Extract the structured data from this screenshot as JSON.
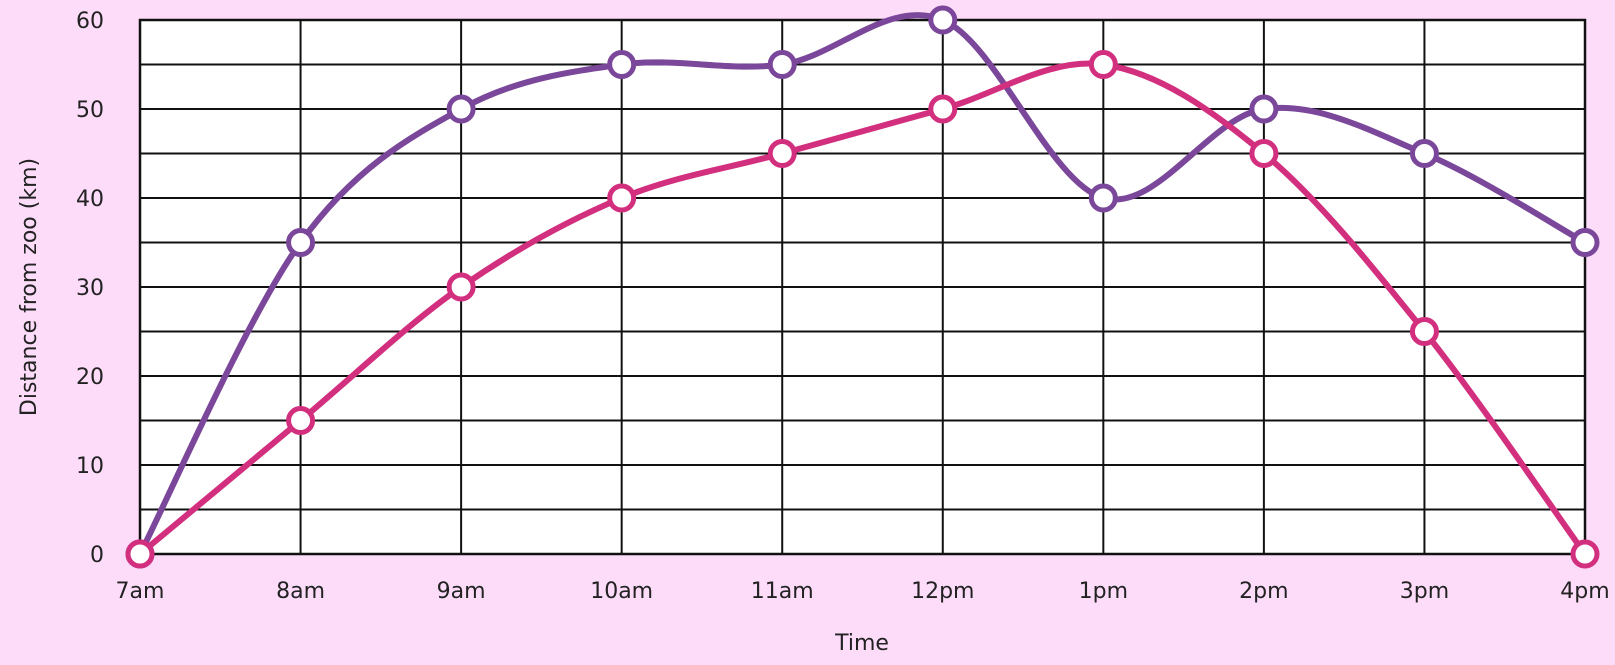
{
  "chart_data": {
    "type": "line",
    "title": "",
    "xlabel": "Time",
    "ylabel": "Distance from zoo (km)",
    "categories": [
      "7am",
      "8am",
      "9am",
      "10am",
      "11am",
      "12pm",
      "1pm",
      "2pm",
      "3pm",
      "4pm"
    ],
    "ylim": [
      0,
      60
    ],
    "yticks": [
      0,
      10,
      20,
      30,
      40,
      50,
      60
    ],
    "grid": true,
    "smooth": true,
    "series": [
      {
        "color": "#7B479A",
        "values": [
          0,
          35,
          50,
          55,
          55,
          60,
          40,
          50,
          45,
          35
        ]
      },
      {
        "color": "#D32F7F",
        "values": [
          0,
          15,
          30,
          40,
          45,
          50,
          55,
          45,
          25,
          0
        ]
      }
    ],
    "background": "#FDDCFA"
  }
}
